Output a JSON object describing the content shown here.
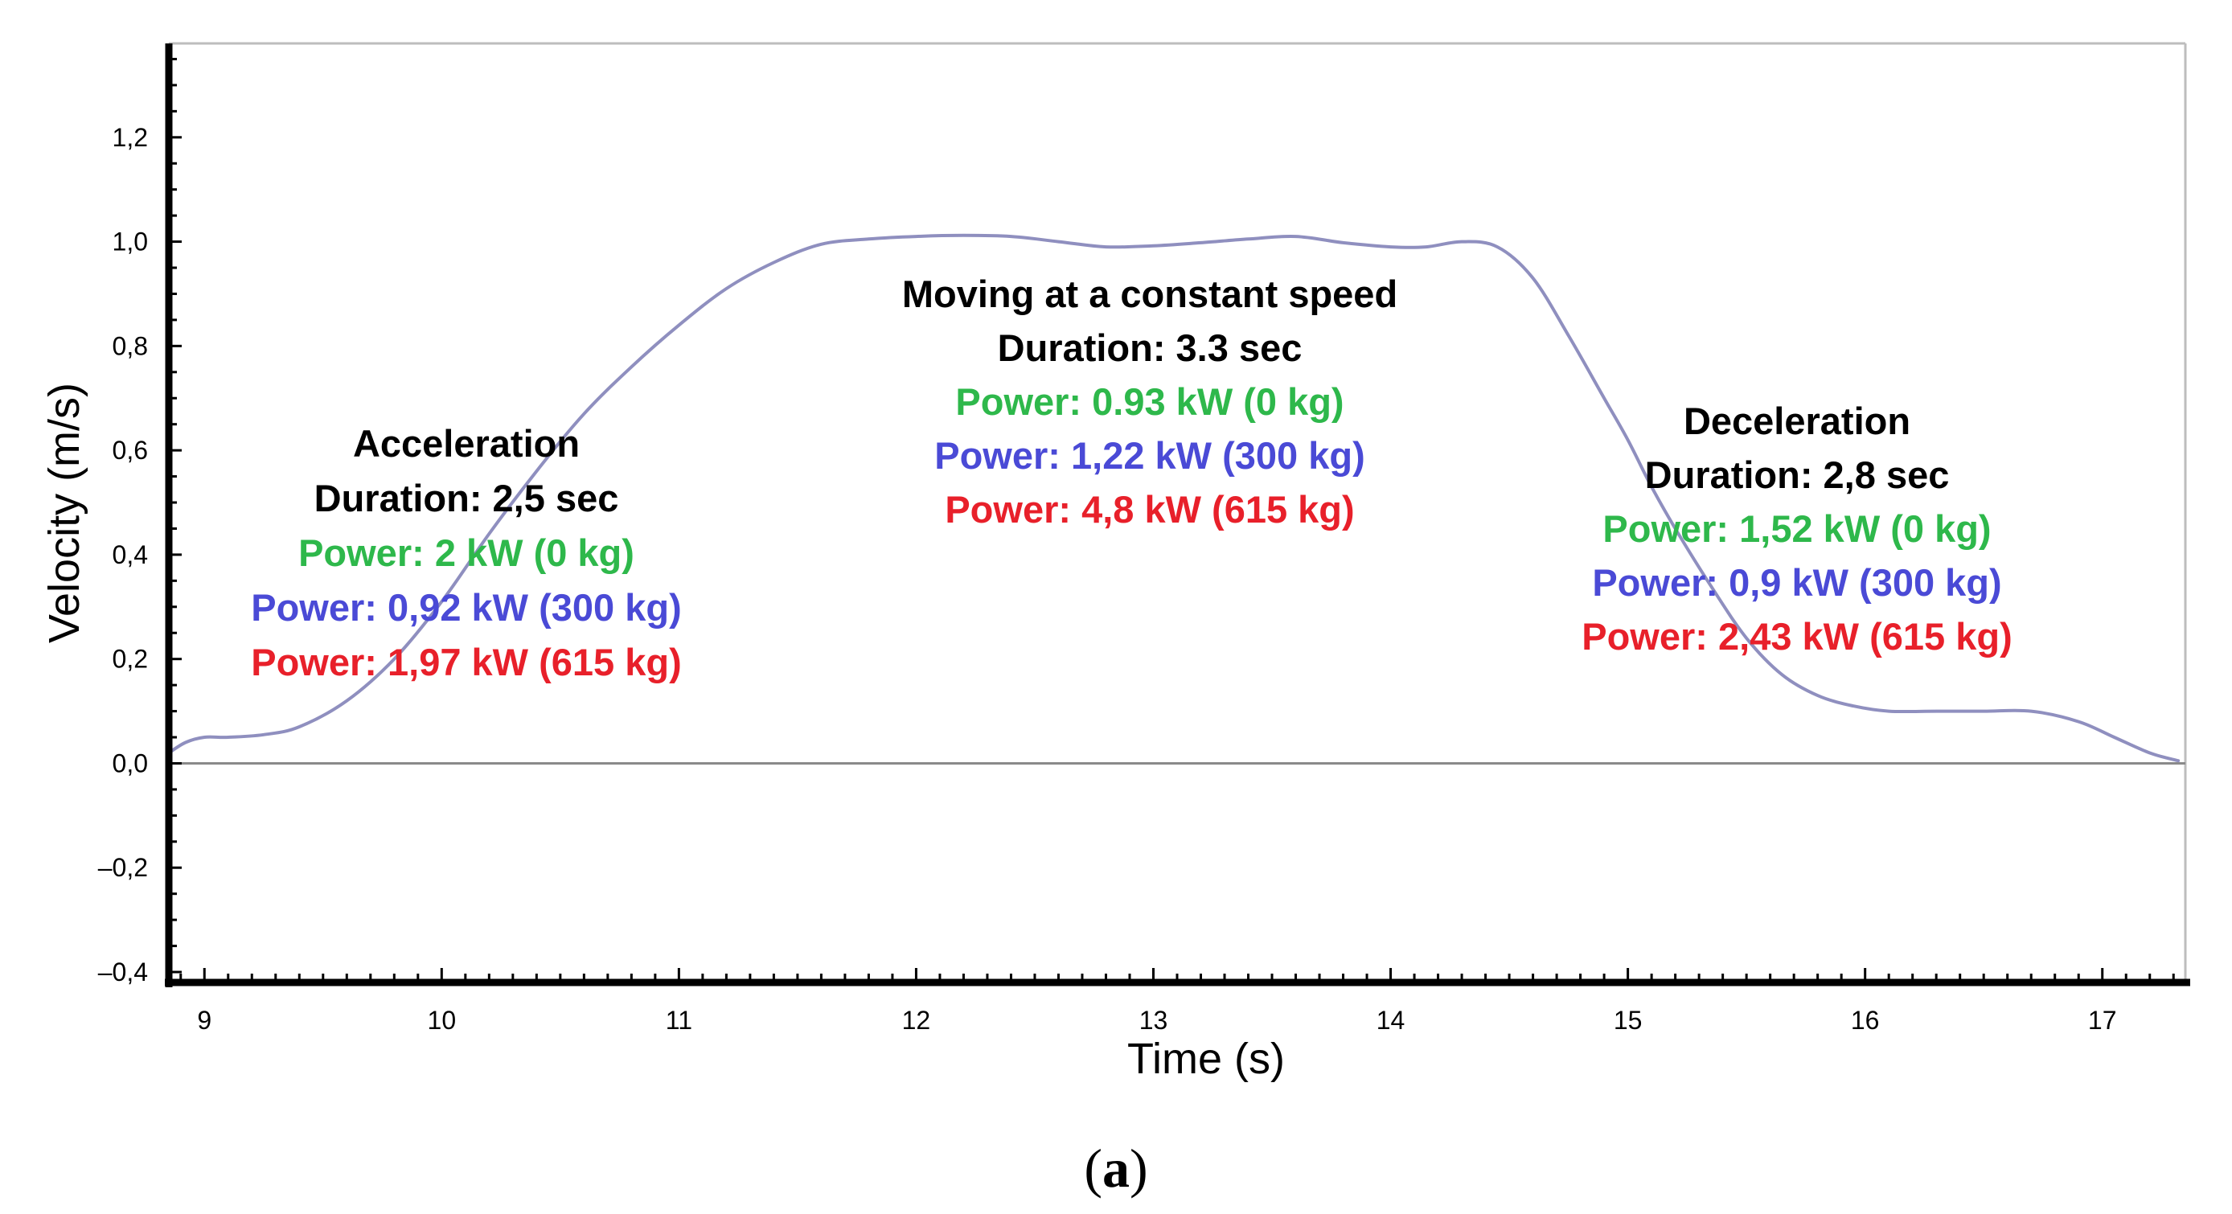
{
  "chart_data": {
    "type": "line",
    "xlabel": "Time  (s)",
    "ylabel": "Velocity  (m/s)",
    "xlim": [
      8.85,
      17.35
    ],
    "ylim": [
      -0.42,
      1.38
    ],
    "x_ticks": [
      9,
      10,
      11,
      12,
      13,
      14,
      15,
      16,
      17
    ],
    "x_tick_labels": [
      "9",
      "10",
      "11",
      "12",
      "13",
      "14",
      "15",
      "16",
      "17"
    ],
    "y_ticks": [
      -0.4,
      -0.2,
      0.0,
      0.2,
      0.4,
      0.6,
      0.8,
      1.0,
      1.2
    ],
    "y_tick_labels": [
      "–0,4",
      "–0,2",
      "0,0",
      "0,2",
      "0,4",
      "0,6",
      "0,8",
      "1,0",
      "1,2"
    ],
    "series": [
      {
        "name": "velocity",
        "color": "#8f8fbf",
        "x": [
          8.85,
          8.92,
          9.0,
          9.1,
          9.25,
          9.4,
          9.6,
          9.8,
          10.0,
          10.2,
          10.4,
          10.6,
          10.8,
          11.0,
          11.2,
          11.4,
          11.6,
          11.8,
          12.0,
          12.2,
          12.4,
          12.6,
          12.8,
          13.0,
          13.2,
          13.4,
          13.6,
          13.8,
          14.0,
          14.15,
          14.3,
          14.45,
          14.6,
          14.75,
          14.9,
          15.0,
          15.1,
          15.2,
          15.35,
          15.5,
          15.65,
          15.8,
          15.95,
          16.1,
          16.3,
          16.5,
          16.7,
          16.9,
          17.05,
          17.2,
          17.32
        ],
        "y": [
          0.02,
          0.04,
          0.05,
          0.05,
          0.055,
          0.07,
          0.12,
          0.2,
          0.31,
          0.44,
          0.56,
          0.67,
          0.76,
          0.84,
          0.91,
          0.96,
          0.995,
          1.005,
          1.01,
          1.012,
          1.01,
          1.0,
          0.99,
          0.992,
          0.998,
          1.005,
          1.01,
          0.998,
          0.99,
          0.99,
          1.0,
          0.99,
          0.93,
          0.82,
          0.7,
          0.62,
          0.53,
          0.45,
          0.34,
          0.24,
          0.17,
          0.13,
          0.11,
          0.1,
          0.1,
          0.1,
          0.1,
          0.08,
          0.05,
          0.02,
          0.005
        ]
      }
    ],
    "annotations": [
      {
        "lines": [
          {
            "text": "Acceleration",
            "color": "#000000"
          },
          {
            "text": "Duration: 2,5 sec",
            "color": "#000000"
          },
          {
            "text": "Power: 2 kW  (0 kg)",
            "color": "#2eb84b"
          },
          {
            "text": "Power: 0,92 kW (300 kg)",
            "color": "#4a4ad6"
          },
          {
            "text": "Power: 1,97 kW (615 kg)",
            "color": "#e8202a"
          }
        ]
      },
      {
        "lines": [
          {
            "text": "Moving at a constant speed",
            "color": "#000000"
          },
          {
            "text": "Duration: 3.3 sec",
            "color": "#000000"
          },
          {
            "text": "Power: 0.93 kW (0 kg)",
            "color": "#2eb84b"
          },
          {
            "text": "Power: 1,22 kW (300 kg)",
            "color": "#4a4ad6"
          },
          {
            "text": "Power: 4,8 kW (615 kg)",
            "color": "#e8202a"
          }
        ]
      },
      {
        "lines": [
          {
            "text": "Deceleration",
            "color": "#000000"
          },
          {
            "text": "Duration: 2,8 sec",
            "color": "#000000"
          },
          {
            "text": "Power: 1,52 kW (0 kg)",
            "color": "#2eb84b"
          },
          {
            "text": "Power: 0,9 kW (300 kg)",
            "color": "#4a4ad6"
          },
          {
            "text": "Power: 2,43 kW (615 kg)",
            "color": "#e8202a"
          }
        ]
      }
    ]
  },
  "caption": {
    "open": "(",
    "letter": "a",
    "close": ")"
  }
}
